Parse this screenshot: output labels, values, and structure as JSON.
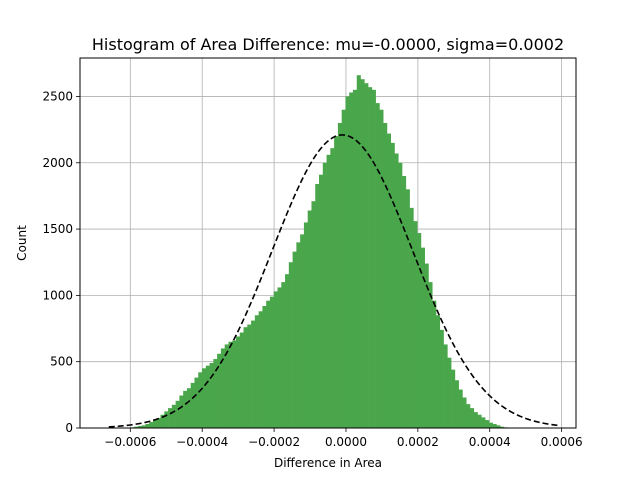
{
  "chart_data": {
    "type": "bar",
    "title": "Histogram of Area Difference: mu=-0.0000, sigma=0.0002",
    "xlabel": "Difference in Area",
    "ylabel": "Count",
    "xlim": [
      -0.00074,
      0.00064
    ],
    "ylim": [
      0,
      2790
    ],
    "grid": true,
    "x_ticks": [
      {
        "value": -0.0006,
        "label": "−0.0006"
      },
      {
        "value": -0.0004,
        "label": "−0.0004"
      },
      {
        "value": -0.0002,
        "label": "−0.0002"
      },
      {
        "value": 0.0,
        "label": "0.0000"
      },
      {
        "value": 0.0002,
        "label": "0.0002"
      },
      {
        "value": 0.0004,
        "label": "0.0004"
      },
      {
        "value": 0.0006,
        "label": "0.0006"
      }
    ],
    "y_ticks": [
      {
        "value": 0,
        "label": "0"
      },
      {
        "value": 500,
        "label": "500"
      },
      {
        "value": 1000,
        "label": "1000"
      },
      {
        "value": 1500,
        "label": "1500"
      },
      {
        "value": 2000,
        "label": "2000"
      },
      {
        "value": 2500,
        "label": "2500"
      }
    ],
    "histogram": {
      "color": "#4aa64a",
      "bin_start": -0.0006,
      "bin_width": 1.05e-05,
      "counts": [
        5,
        10,
        15,
        20,
        30,
        45,
        60,
        75,
        100,
        125,
        150,
        175,
        205,
        245,
        280,
        300,
        340,
        380,
        420,
        450,
        470,
        490,
        520,
        560,
        600,
        630,
        650,
        660,
        690,
        720,
        760,
        780,
        810,
        850,
        880,
        920,
        960,
        990,
        1030,
        1060,
        1100,
        1160,
        1250,
        1330,
        1400,
        1460,
        1550,
        1640,
        1710,
        1840,
        1910,
        2000,
        2060,
        2110,
        2200,
        2300,
        2400,
        2500,
        2530,
        2550,
        2660,
        2630,
        2600,
        2570,
        2550,
        2450,
        2400,
        2300,
        2220,
        2150,
        2070,
        2000,
        1900,
        1800,
        1660,
        1560,
        1470,
        1360,
        1240,
        1100,
        960,
        850,
        740,
        630,
        530,
        440,
        360,
        290,
        230,
        180,
        150,
        120,
        100,
        80,
        60,
        40,
        30,
        20,
        10,
        5
      ]
    },
    "fit_curve": {
      "color": "#000000",
      "style": "dashed",
      "mu": -1e-05,
      "sigma": 0.000195,
      "peak": 2210,
      "x_range": [
        -0.00066,
        0.00059
      ]
    }
  }
}
